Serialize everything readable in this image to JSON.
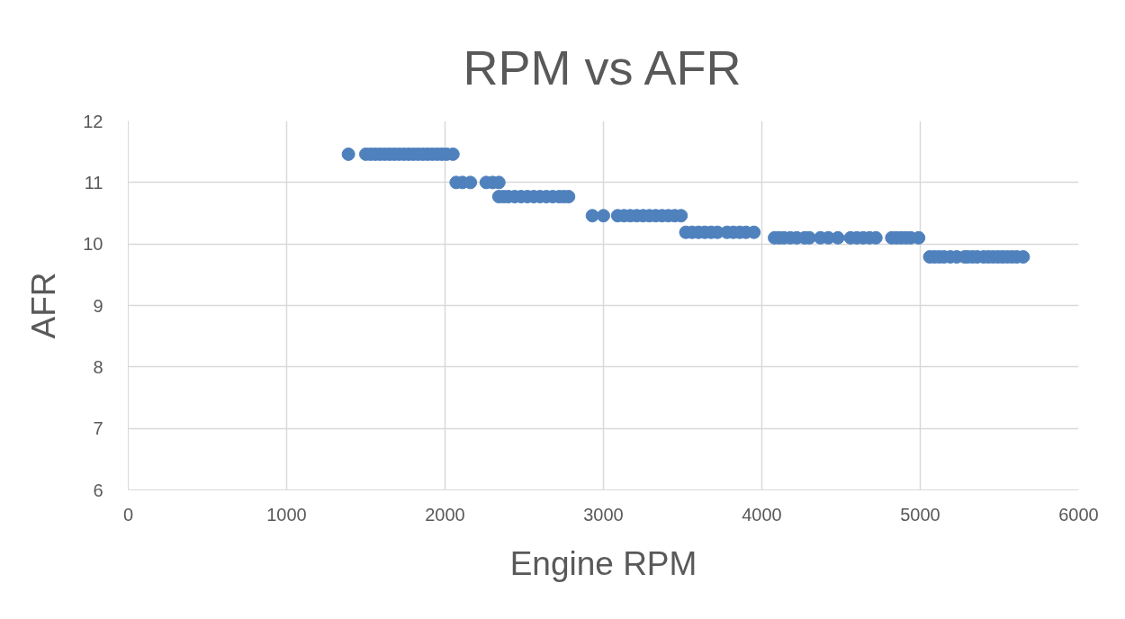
{
  "chart_data": {
    "type": "scatter",
    "title": "RPM vs AFR",
    "xlabel": "Engine RPM",
    "ylabel": "AFR",
    "xlim": [
      0,
      6000
    ],
    "ylim": [
      6,
      12
    ],
    "xticks": [
      0,
      1000,
      2000,
      3000,
      4000,
      5000,
      6000
    ],
    "yticks": [
      6,
      7,
      8,
      9,
      10,
      11,
      12
    ],
    "grid": true,
    "marker": "circle",
    "series": [
      {
        "color": "#4f81bd",
        "x": [
          1390,
          1500,
          1530,
          1560,
          1590,
          1620,
          1650,
          1680,
          1710,
          1740,
          1770,
          1800,
          1830,
          1860,
          1890,
          1920,
          1950,
          1980,
          2010,
          2050,
          2070,
          2110,
          2160,
          2260,
          2300,
          2340,
          2340,
          2370,
          2400,
          2440,
          2480,
          2520,
          2560,
          2600,
          2640,
          2680,
          2720,
          2750,
          2780,
          2930,
          3000,
          3090,
          3130,
          3170,
          3210,
          3250,
          3290,
          3330,
          3370,
          3410,
          3450,
          3490,
          3520,
          3560,
          3600,
          3640,
          3680,
          3720,
          3780,
          3820,
          3860,
          3900,
          3950,
          4080,
          4110,
          4140,
          4180,
          4220,
          4270,
          4300,
          4370,
          4420,
          4480,
          4560,
          4600,
          4640,
          4680,
          4720,
          4820,
          4850,
          4880,
          4910,
          4940,
          4990,
          5060,
          5090,
          5120,
          5150,
          5190,
          5230,
          5280,
          5300,
          5330,
          5360,
          5400,
          5430,
          5460,
          5490,
          5520,
          5550,
          5580,
          5610,
          5650
        ],
        "values": [
          11.46,
          11.46,
          11.46,
          11.46,
          11.46,
          11.46,
          11.46,
          11.46,
          11.46,
          11.46,
          11.46,
          11.46,
          11.46,
          11.46,
          11.46,
          11.46,
          11.46,
          11.46,
          11.46,
          11.46,
          11.0,
          11.0,
          11.0,
          11.0,
          11.0,
          11.0,
          10.77,
          10.77,
          10.77,
          10.77,
          10.77,
          10.77,
          10.77,
          10.77,
          10.77,
          10.77,
          10.77,
          10.77,
          10.77,
          10.46,
          10.46,
          10.46,
          10.46,
          10.46,
          10.46,
          10.46,
          10.46,
          10.46,
          10.46,
          10.46,
          10.46,
          10.46,
          10.19,
          10.19,
          10.19,
          10.19,
          10.19,
          10.19,
          10.19,
          10.19,
          10.19,
          10.19,
          10.19,
          10.1,
          10.1,
          10.1,
          10.1,
          10.1,
          10.1,
          10.1,
          10.1,
          10.1,
          10.1,
          10.1,
          10.1,
          10.1,
          10.1,
          10.1,
          10.1,
          10.1,
          10.1,
          10.1,
          10.1,
          10.1,
          9.79,
          9.79,
          9.79,
          9.79,
          9.79,
          9.79,
          9.79,
          9.79,
          9.79,
          9.79,
          9.79,
          9.79,
          9.79,
          9.79,
          9.79,
          9.79,
          9.79,
          9.79,
          9.79
        ]
      }
    ]
  }
}
